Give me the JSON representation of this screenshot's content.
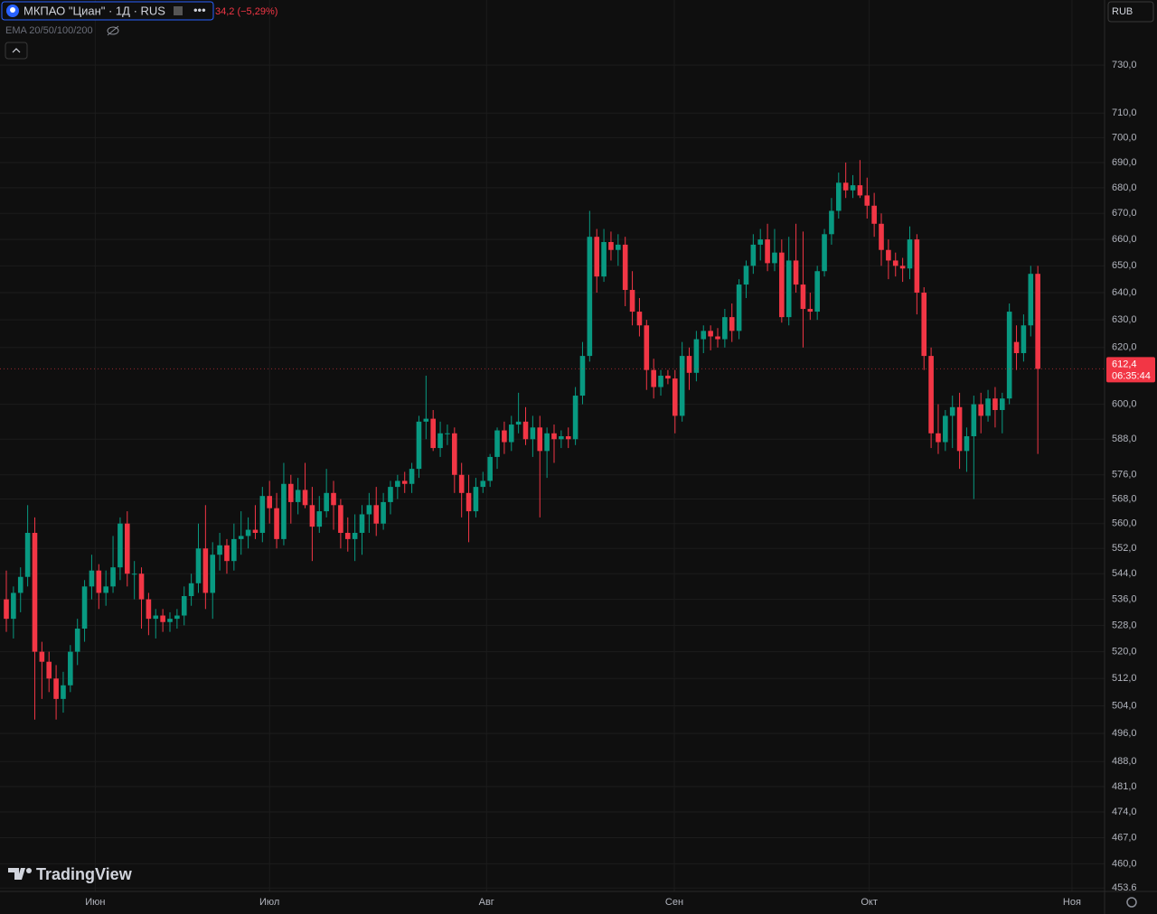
{
  "header": {
    "symbol": "МКПАО \"Циан\" · 1Д · RUS",
    "change": "34,2 (−5,29%)",
    "indicator": "EMA 20/50/100/200",
    "currency": "RUB",
    "logo": "TradingView"
  },
  "chart_data": {
    "type": "candlestick",
    "log_scale": true,
    "grid": true,
    "up_color": "#089981",
    "down_color": "#f23645",
    "ylim": [
      452.7,
      758
    ],
    "yticks": [
      {
        "value": 730,
        "label": "730,0"
      },
      {
        "value": 710,
        "label": "710,0"
      },
      {
        "value": 700,
        "label": "700,0"
      },
      {
        "value": 690,
        "label": "690,0"
      },
      {
        "value": 680,
        "label": "680,0"
      },
      {
        "value": 670,
        "label": "670,0"
      },
      {
        "value": 660,
        "label": "660,0"
      },
      {
        "value": 650,
        "label": "650,0"
      },
      {
        "value": 640,
        "label": "640,0"
      },
      {
        "value": 630,
        "label": "630,0"
      },
      {
        "value": 620,
        "label": "620,0"
      },
      {
        "value": 600,
        "label": "600,0"
      },
      {
        "value": 588,
        "label": "588,0"
      },
      {
        "value": 576,
        "label": "576,0"
      },
      {
        "value": 568,
        "label": "568,0"
      },
      {
        "value": 560,
        "label": "560,0"
      },
      {
        "value": 552,
        "label": "552,0"
      },
      {
        "value": 544,
        "label": "544,0"
      },
      {
        "value": 536,
        "label": "536,0"
      },
      {
        "value": 528,
        "label": "528,0"
      },
      {
        "value": 520,
        "label": "520,0"
      },
      {
        "value": 512,
        "label": "512,0"
      },
      {
        "value": 504,
        "label": "504,0"
      },
      {
        "value": 496,
        "label": "496,0"
      },
      {
        "value": 488,
        "label": "488,0"
      },
      {
        "value": 481,
        "label": "481,0"
      },
      {
        "value": 474,
        "label": "474,0"
      },
      {
        "value": 467,
        "label": "467,0"
      },
      {
        "value": 460,
        "label": "460,0"
      },
      {
        "value": 453.6,
        "label": "453.6"
      }
    ],
    "xticks": [
      {
        "value": 12.5,
        "label": "Июн"
      },
      {
        "value": 37,
        "label": "Июл"
      },
      {
        "value": 67.5,
        "label": "Авг"
      },
      {
        "value": 93.9,
        "label": "Сен"
      },
      {
        "value": 121.3,
        "label": "Окт"
      },
      {
        "value": 149.8,
        "label": "Ноя"
      }
    ],
    "last_price": {
      "value": 612.4,
      "label": "612,4"
    },
    "countdown": "06:35:44",
    "candles": [
      [
        536,
        545,
        526,
        530
      ],
      [
        530,
        540,
        524,
        538
      ],
      [
        538,
        546,
        532,
        543
      ],
      [
        543,
        566,
        540,
        557
      ],
      [
        557,
        562,
        500,
        520
      ],
      [
        520,
        523,
        506,
        517
      ],
      [
        517,
        520,
        508,
        512
      ],
      [
        512,
        516,
        500,
        506
      ],
      [
        506,
        514,
        502,
        510
      ],
      [
        510,
        522,
        508,
        520
      ],
      [
        520,
        530,
        516,
        527
      ],
      [
        527,
        542,
        523,
        540
      ],
      [
        540,
        550,
        536,
        545
      ],
      [
        545,
        547,
        533,
        538
      ],
      [
        538,
        545,
        534,
        540
      ],
      [
        540,
        556,
        538,
        546
      ],
      [
        546,
        562,
        542,
        560
      ],
      [
        560,
        564,
        540,
        544
      ],
      [
        544,
        548,
        536,
        544
      ],
      [
        544,
        546,
        527,
        536
      ],
      [
        536,
        538,
        525,
        530
      ],
      [
        530,
        533,
        524,
        531
      ],
      [
        531,
        533,
        526,
        529
      ],
      [
        529,
        532,
        526,
        530
      ],
      [
        530,
        533,
        527,
        531
      ],
      [
        531,
        540,
        528,
        537
      ],
      [
        537,
        544,
        534,
        541
      ],
      [
        541,
        560,
        538,
        552
      ],
      [
        552,
        566,
        533,
        538
      ],
      [
        538,
        554,
        530,
        550
      ],
      [
        550,
        557,
        545,
        553
      ],
      [
        553,
        555,
        544,
        548
      ],
      [
        548,
        560,
        545,
        555
      ],
      [
        555,
        564,
        550,
        556
      ],
      [
        556,
        562,
        552,
        558
      ],
      [
        558,
        566,
        555,
        557
      ],
      [
        557,
        572,
        554,
        569
      ],
      [
        569,
        574,
        560,
        565
      ],
      [
        565,
        570,
        552,
        555
      ],
      [
        555,
        580,
        553,
        573
      ],
      [
        573,
        576,
        560,
        567
      ],
      [
        567,
        575,
        563,
        571
      ],
      [
        571,
        580,
        565,
        566
      ],
      [
        566,
        572,
        548,
        559
      ],
      [
        559,
        569,
        557,
        564
      ],
      [
        564,
        578,
        562,
        570
      ],
      [
        570,
        574,
        558,
        566
      ],
      [
        566,
        568,
        552,
        557
      ],
      [
        557,
        562,
        551,
        555
      ],
      [
        555,
        563,
        548,
        557
      ],
      [
        557,
        566,
        550,
        563
      ],
      [
        563,
        570,
        557,
        566
      ],
      [
        566,
        572,
        556,
        560
      ],
      [
        560,
        570,
        558,
        567
      ],
      [
        567,
        574,
        563,
        572
      ],
      [
        572,
        576,
        568,
        574
      ],
      [
        574,
        577,
        570,
        573
      ],
      [
        573,
        580,
        570,
        578
      ],
      [
        578,
        596,
        575,
        594
      ],
      [
        594,
        610,
        588,
        595
      ],
      [
        595,
        598,
        584,
        585
      ],
      [
        585,
        594,
        582,
        590
      ],
      [
        590,
        593,
        586,
        590
      ],
      [
        590,
        592,
        570,
        576
      ],
      [
        576,
        580,
        562,
        570
      ],
      [
        570,
        576,
        554,
        564
      ],
      [
        564,
        575,
        562,
        572
      ],
      [
        572,
        577,
        570,
        574
      ],
      [
        574,
        583,
        572,
        582
      ],
      [
        582,
        592,
        578,
        591
      ],
      [
        591,
        594,
        583,
        587
      ],
      [
        587,
        596,
        584,
        593
      ],
      [
        593,
        604,
        590,
        594
      ],
      [
        594,
        599,
        586,
        588
      ],
      [
        588,
        596,
        582,
        592
      ],
      [
        592,
        596,
        562,
        584
      ],
      [
        584,
        592,
        575,
        590
      ],
      [
        590,
        593,
        580,
        588
      ],
      [
        588,
        591,
        585,
        589
      ],
      [
        589,
        592,
        585,
        588
      ],
      [
        588,
        606,
        586,
        603
      ],
      [
        603,
        622,
        600,
        617
      ],
      [
        617,
        671,
        615,
        661
      ],
      [
        661,
        664,
        640,
        646
      ],
      [
        646,
        664,
        644,
        659
      ],
      [
        659,
        663,
        652,
        656
      ],
      [
        656,
        662,
        650,
        658
      ],
      [
        658,
        661,
        635,
        641
      ],
      [
        641,
        648,
        628,
        633
      ],
      [
        633,
        638,
        624,
        628
      ],
      [
        628,
        630,
        605,
        612
      ],
      [
        612,
        616,
        602,
        606
      ],
      [
        606,
        612,
        603,
        610
      ],
      [
        610,
        612,
        607,
        609
      ],
      [
        609,
        612,
        590,
        596
      ],
      [
        596,
        622,
        594,
        617
      ],
      [
        617,
        620,
        605,
        611
      ],
      [
        611,
        626,
        608,
        623
      ],
      [
        623,
        628,
        618,
        626
      ],
      [
        626,
        628,
        619,
        624
      ],
      [
        624,
        627,
        620,
        623
      ],
      [
        623,
        634,
        620,
        631
      ],
      [
        631,
        636,
        622,
        626
      ],
      [
        626,
        645,
        623,
        643
      ],
      [
        643,
        652,
        638,
        650
      ],
      [
        650,
        662,
        647,
        658
      ],
      [
        658,
        664,
        652,
        660
      ],
      [
        660,
        666,
        648,
        651
      ],
      [
        651,
        664,
        648,
        655
      ],
      [
        655,
        660,
        629,
        631
      ],
      [
        631,
        661,
        628,
        652
      ],
      [
        652,
        666,
        640,
        643
      ],
      [
        643,
        663,
        620,
        634
      ],
      [
        634,
        640,
        630,
        633
      ],
      [
        633,
        650,
        630,
        648
      ],
      [
        648,
        664,
        646,
        662
      ],
      [
        662,
        676,
        658,
        671
      ],
      [
        671,
        686,
        668,
        682
      ],
      [
        682,
        690,
        676,
        679
      ],
      [
        679,
        685,
        676,
        681
      ],
      [
        681,
        691,
        676,
        677
      ],
      [
        677,
        684,
        668,
        673
      ],
      [
        673,
        678,
        661,
        666
      ],
      [
        666,
        670,
        650,
        656
      ],
      [
        656,
        660,
        645,
        652
      ],
      [
        652,
        655,
        646,
        650
      ],
      [
        650,
        653,
        644,
        649
      ],
      [
        649,
        665,
        645,
        660
      ],
      [
        660,
        662,
        632,
        640
      ],
      [
        640,
        642,
        612,
        617
      ],
      [
        617,
        620,
        585,
        590
      ],
      [
        590,
        600,
        583,
        587
      ],
      [
        587,
        598,
        584,
        596
      ],
      [
        596,
        603,
        585,
        599
      ],
      [
        599,
        604,
        578,
        584
      ],
      [
        584,
        592,
        577,
        589
      ],
      [
        589,
        603,
        568,
        600
      ],
      [
        600,
        604,
        590,
        596
      ],
      [
        596,
        605,
        594,
        602
      ],
      [
        602,
        606,
        592,
        598
      ],
      [
        598,
        604,
        590,
        602
      ],
      [
        602,
        636,
        600,
        633
      ],
      [
        622,
        628,
        612,
        618
      ],
      [
        618,
        632,
        615,
        628
      ],
      [
        628,
        650,
        624,
        647
      ],
      [
        647,
        650,
        583,
        612.4
      ]
    ]
  }
}
